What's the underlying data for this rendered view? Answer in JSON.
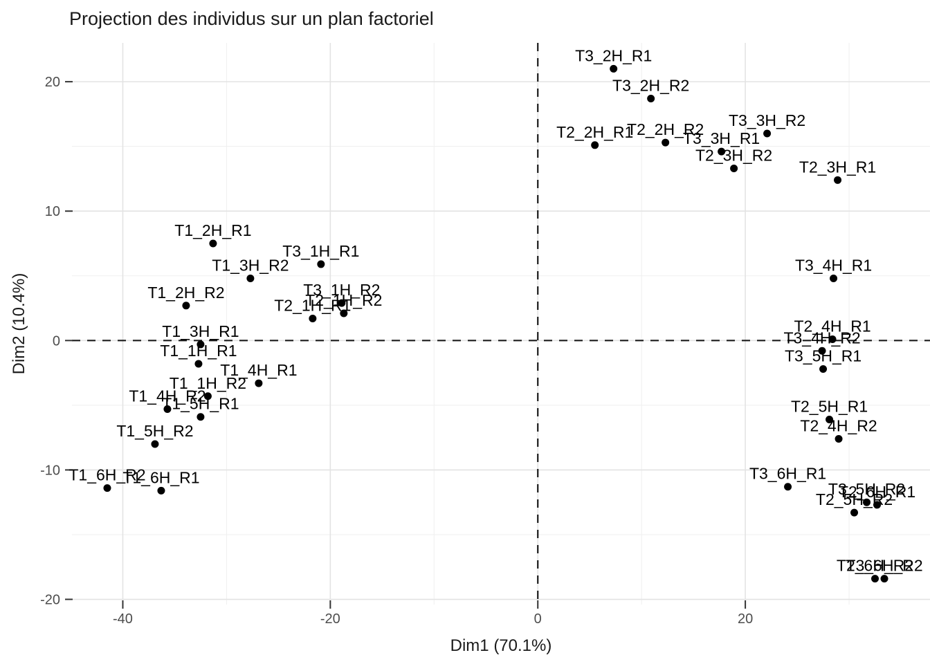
{
  "chart_data": {
    "type": "scatter",
    "title": "Projection des individus sur un plan factoriel",
    "xlabel": "Dim1 (70.1%)",
    "ylabel": "Dim2 (10.4%)",
    "xlim": [
      -44.9,
      37.8
    ],
    "ylim": [
      -20.4,
      23.0
    ],
    "x_ticks": [
      -40,
      -20,
      0,
      20
    ],
    "y_ticks": [
      -20,
      -10,
      0,
      10,
      20
    ],
    "x_minor_gridlines": [
      -30,
      -10,
      10,
      30
    ],
    "y_minor_gridlines": [
      -15,
      -5,
      5,
      15
    ],
    "grid": true,
    "legend": "none",
    "reference_lines": {
      "vertical_x": 0,
      "horizontal_y": 0,
      "style": "dashed"
    },
    "point_color": "#000000",
    "tick_label_color": "#4d4d4d",
    "major_grid_color": "#e3e3e3",
    "minor_grid_color": "#efefef",
    "points": [
      {
        "label": "T1_2H_R1",
        "x": -31.3,
        "y": 7.5
      },
      {
        "label": "T3_1H_R1",
        "x": -20.9,
        "y": 5.9
      },
      {
        "label": "T1_3H_R2",
        "x": -27.7,
        "y": 4.8
      },
      {
        "label": "T1_2H_R2",
        "x": -33.9,
        "y": 2.7
      },
      {
        "label": "T3_1H_R2",
        "x": -18.9,
        "y": 2.9
      },
      {
        "label": "T2_1H_R2",
        "x": -18.7,
        "y": 2.1
      },
      {
        "label": "T2_1H_R1",
        "x": -21.7,
        "y": 1.7
      },
      {
        "label": "T1_3H_R1",
        "x": -32.5,
        "y": -0.3
      },
      {
        "label": "T1_1H_R1",
        "x": -32.7,
        "y": -1.8
      },
      {
        "label": "T1_4H_R1",
        "x": -26.9,
        "y": -3.3
      },
      {
        "label": "T1_1H_R2",
        "x": -31.8,
        "y": -4.3
      },
      {
        "label": "T1_4H_R2",
        "x": -35.7,
        "y": -5.3
      },
      {
        "label": "T1_5H_R1",
        "x": -32.5,
        "y": -5.9
      },
      {
        "label": "T1_5H_R2",
        "x": -36.9,
        "y": -8.0
      },
      {
        "label": "T1_6H_R2",
        "x": -41.5,
        "y": -11.4
      },
      {
        "label": "T1_6H_R1",
        "x": -36.3,
        "y": -11.6
      },
      {
        "label": "T3_2H_R1",
        "x": 7.3,
        "y": 21.0
      },
      {
        "label": "T3_2H_R2",
        "x": 10.9,
        "y": 18.7
      },
      {
        "label": "T2_2H_R1",
        "x": 5.5,
        "y": 15.1
      },
      {
        "label": "T2_2H_R2",
        "x": 12.3,
        "y": 15.3
      },
      {
        "label": "T3_3H_R1",
        "x": 17.7,
        "y": 14.6
      },
      {
        "label": "T3_3H_R2",
        "x": 22.1,
        "y": 16.0
      },
      {
        "label": "T2_3H_R2",
        "x": 18.9,
        "y": 13.3
      },
      {
        "label": "T2_3H_R1",
        "x": 28.9,
        "y": 12.4
      },
      {
        "label": "T3_4H_R1",
        "x": 28.5,
        "y": 4.8
      },
      {
        "label": "T2_4H_R1",
        "x": 28.4,
        "y": 0.1
      },
      {
        "label": "T3_4H_R2",
        "x": 27.4,
        "y": -0.8
      },
      {
        "label": "T3_5H_R1",
        "x": 27.5,
        "y": -2.2
      },
      {
        "label": "T2_5H_R1",
        "x": 28.1,
        "y": -6.1
      },
      {
        "label": "T2_4H_R2",
        "x": 29.0,
        "y": -7.6
      },
      {
        "label": "T3_6H_R1",
        "x": 24.1,
        "y": -11.3
      },
      {
        "label": "T3_5H_R2",
        "x": 31.7,
        "y": -12.5
      },
      {
        "label": "T2_6H_R1",
        "x": 32.7,
        "y": -12.7
      },
      {
        "label": "T2_5H_R2",
        "x": 30.5,
        "y": -13.3
      },
      {
        "label": "T2_6H_R2",
        "x": 32.5,
        "y": -18.4
      },
      {
        "label": "T3_6H_R2",
        "x": 33.4,
        "y": -18.4
      }
    ]
  }
}
